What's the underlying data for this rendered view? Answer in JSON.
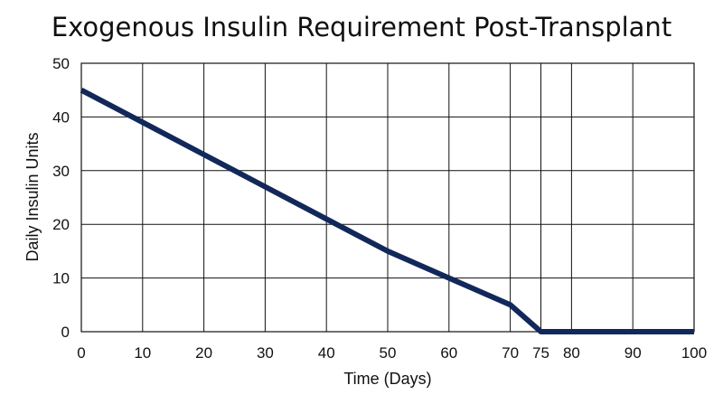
{
  "chart_data": {
    "type": "line",
    "title": "Exogenous Insulin Requirement Post-Transplant",
    "xlabel": "Time (Days)",
    "ylabel": "Daily Insulin Units",
    "xlim": [
      0,
      100
    ],
    "ylim": [
      0,
      50
    ],
    "xticks": [
      0,
      10,
      20,
      30,
      40,
      50,
      60,
      70,
      75,
      80,
      90,
      100
    ],
    "yticks": [
      0,
      10,
      20,
      30,
      40,
      50
    ],
    "grid": true,
    "series_color": "#12285a",
    "series": [
      {
        "x": [
          0,
          10,
          20,
          30,
          40,
          50,
          60,
          70,
          75,
          80,
          90,
          100
        ],
        "y": [
          45,
          39,
          33,
          27,
          21,
          15,
          10,
          5,
          0,
          0,
          0,
          0
        ]
      }
    ]
  }
}
